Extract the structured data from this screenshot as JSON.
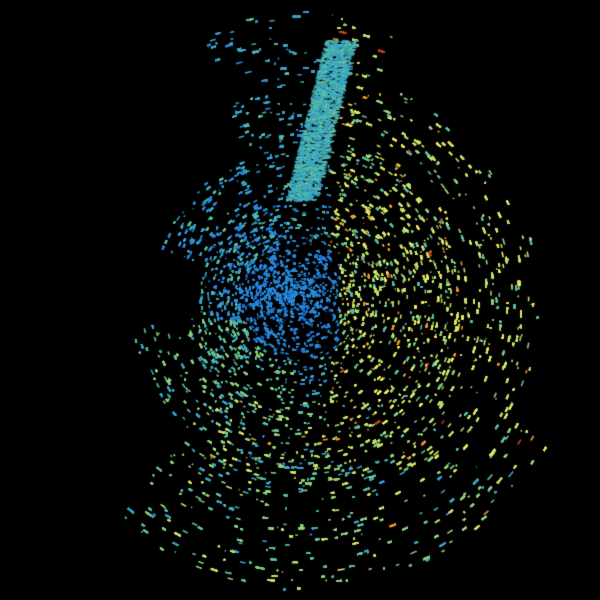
{
  "background_color": "#000000",
  "palette": {
    "deep_blue": "#1f6fd0",
    "blue": "#2a8ad8",
    "cyan": "#3aa6c8",
    "teal": "#5bbfa0",
    "green": "#8fd27a",
    "yellow_green": "#c8e26a",
    "yellow": "#e8e860",
    "orange": "#e89a2a",
    "red": "#c8401a"
  },
  "site_marker_color": "#000000"
}
